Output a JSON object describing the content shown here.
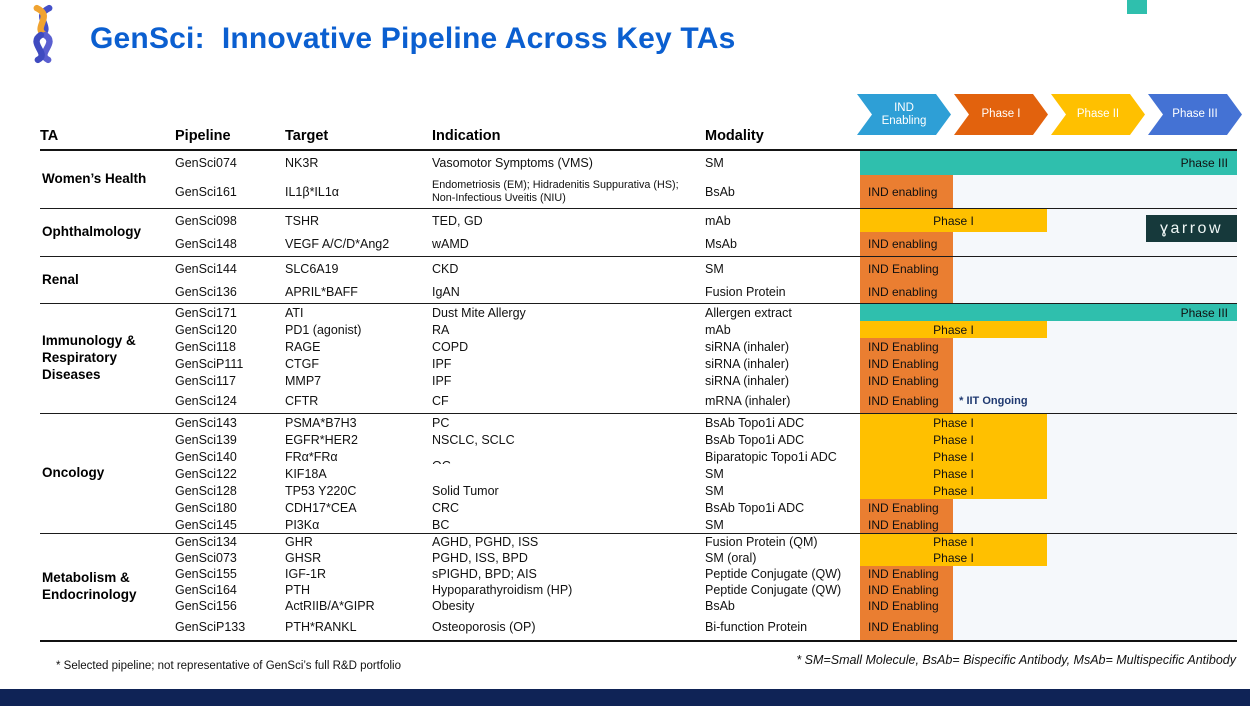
{
  "header": {
    "title": "GenSci:  Innovative Pipeline Across Key TAs",
    "logo": "dna-helix-logo"
  },
  "colors": {
    "title_blue": "#0B5FD0",
    "teal_bar": "#2FBFAD",
    "orange_bar": "#EA7E31",
    "yellow_bar": "#FFC000",
    "navy_bottom_bar": "#0F2356",
    "note_navy": "#1F3970",
    "watermark_bg": "#16393B",
    "corner_accent": "#2FBFAD"
  },
  "legend": {
    "phases": [
      {
        "label": "IND\nEnabling",
        "color": "#2E9FD6"
      },
      {
        "label": "Phase I",
        "color": "#E2620D"
      },
      {
        "label": "Phase II",
        "color": "#FFC000"
      },
      {
        "label": "Phase III",
        "color": "#4472D4"
      }
    ]
  },
  "table": {
    "columns": [
      "TA",
      "Pipeline",
      "Target",
      "Indication",
      "Modality"
    ],
    "sections": [
      {
        "ta": "Women’s Health",
        "rows": [
          {
            "pipeline": "GenSci074",
            "target": "NK3R",
            "indication": "Vasomotor Symptoms (VMS)",
            "modality": "SM",
            "phase": "phase3",
            "bar_label": "Phase III"
          },
          {
            "pipeline": "GenSci161",
            "target": "IL1β*IL1α",
            "indication": "Endometriosis (EM); Hidradenitis Suppurativa (HS); Non-Infectious Uveitis (NIU)",
            "modality": "BsAb",
            "phase": "ind",
            "bar_label": "IND enabling"
          }
        ]
      },
      {
        "ta": "Ophthalmology",
        "rows": [
          {
            "pipeline": "GenSci098",
            "target": "TSHR",
            "indication": "TED, GD",
            "modality": "mAb",
            "phase": "phase1",
            "bar_label": "Phase I"
          },
          {
            "pipeline": "GenSci148",
            "target": "VEGF A/C/D*Ang2",
            "indication": "wAMD",
            "modality": "MsAb",
            "phase": "ind",
            "bar_label": "IND enabling"
          }
        ]
      },
      {
        "ta": "Renal",
        "rows": [
          {
            "pipeline": "GenSci144",
            "target": "SLC6A19",
            "indication": "CKD",
            "modality": "SM",
            "phase": "ind",
            "bar_label": "IND Enabling"
          },
          {
            "pipeline": "GenSci136",
            "target": "APRIL*BAFF",
            "indication": "IgAN",
            "modality": "Fusion Protein",
            "phase": "ind",
            "bar_label": "IND enabling"
          }
        ]
      },
      {
        "ta": "Immunology & Respiratory Diseases",
        "rows": [
          {
            "pipeline": "GenSci171",
            "target": "ATI",
            "indication": "Dust Mite Allergy",
            "modality": "Allergen extract",
            "phase": "phase3",
            "bar_label": "Phase III"
          },
          {
            "pipeline": "GenSci120",
            "target": "PD1 (agonist)",
            "indication": "RA",
            "modality": "mAb",
            "phase": "phase1",
            "bar_label": "Phase I"
          },
          {
            "pipeline": "GenSci118",
            "target": "RAGE",
            "indication": "COPD",
            "modality": "siRNA (inhaler)",
            "phase": "ind",
            "bar_label": "IND Enabling"
          },
          {
            "pipeline": "GenSciP111",
            "target": "CTGF",
            "indication": "IPF",
            "modality": "siRNA (inhaler)",
            "phase": "ind",
            "bar_label": "IND Enabling"
          },
          {
            "pipeline": "GenSci117",
            "target": "MMP7",
            "indication": "IPF",
            "modality": "siRNA (inhaler)",
            "phase": "ind",
            "bar_label": "IND Enabling"
          },
          {
            "pipeline": "GenSci124",
            "target": "CFTR",
            "indication": "CF",
            "modality": "mRNA (inhaler)",
            "phase": "ind",
            "bar_label": "IND Enabling",
            "note": "* IIT Ongoing"
          }
        ]
      },
      {
        "ta": "Oncology",
        "rows": [
          {
            "pipeline": "GenSci143",
            "target": "PSMA*B7H3",
            "indication": "PC",
            "modality": "BsAb Topo1i ADC",
            "phase": "phase1",
            "bar_label": "Phase I"
          },
          {
            "pipeline": "GenSci139",
            "target": "EGFR*HER2",
            "indication": "NSCLC, SCLC",
            "modality": "BsAb Topo1i ADC",
            "phase": "phase1",
            "bar_label": "Phase I"
          },
          {
            "pipeline": "GenSci140",
            "target": "FRα*FRα",
            "indication": "OC",
            "indication_shift": true,
            "modality": "Biparatopic Topo1i ADC",
            "phase": "phase1",
            "bar_label": "Phase I"
          },
          {
            "pipeline": "GenSci122",
            "target": "KIF18A",
            "indication": "",
            "modality": "SM",
            "phase": "phase1",
            "bar_label": "Phase I"
          },
          {
            "pipeline": "GenSci128",
            "target": "TP53 Y220C",
            "indication": "Solid Tumor",
            "modality": "SM",
            "phase": "phase1",
            "bar_label": "Phase I"
          },
          {
            "pipeline": "GenSci180",
            "target": "CDH17*CEA",
            "indication": "CRC",
            "modality": "BsAb Topo1i ADC",
            "phase": "ind",
            "bar_label": "IND Enabling"
          },
          {
            "pipeline": "GenSci145",
            "target": "PI3Kα",
            "indication": "BC",
            "modality": "SM",
            "phase": "ind",
            "bar_label": "IND Enabling"
          }
        ]
      },
      {
        "ta": "Metabolism & Endocrinology",
        "rows": [
          {
            "pipeline": "GenSci134",
            "target": "GHR",
            "indication": "AGHD, PGHD, ISS",
            "modality": "Fusion Protein (QM)",
            "phase": "phase1",
            "bar_label": "Phase I"
          },
          {
            "pipeline": "GenSci073",
            "target": "GHSR",
            "indication": "PGHD, ISS, BPD",
            "modality": "SM (oral)",
            "phase": "phase1",
            "bar_label": "Phase I"
          },
          {
            "pipeline": "GenSci155",
            "target": "IGF-1R",
            "indication": "sPIGHD, BPD; AIS",
            "modality": "Peptide Conjugate (QW)",
            "phase": "ind",
            "bar_label": "IND Enabling"
          },
          {
            "pipeline": "GenSci164",
            "target": "PTH",
            "indication": "Hypoparathyroidism (HP)",
            "modality": "Peptide Conjugate (QW)",
            "phase": "ind",
            "bar_label": "IND Enabling"
          },
          {
            "pipeline": "GenSci156",
            "target": "ActRIIB/A*GIPR",
            "indication": "Obesity",
            "modality": "BsAb",
            "phase": "ind",
            "bar_label": "IND Enabling"
          },
          {
            "pipeline": "GenSciP133",
            "target": "PTH*RANKL",
            "indication": "Osteoporosis (OP)",
            "modality": "Bi-function Protein",
            "phase": "ind",
            "bar_label": "IND Enabling"
          }
        ]
      }
    ]
  },
  "watermark": {
    "label": "ɣarrow"
  },
  "footnotes": {
    "left": "* Selected pipeline; not representative of GenSci’s full R&D portfolio",
    "right": "* SM=Small Molecule, BsAb= Bispecific Antibody,  MsAb= Multispecific Antibody"
  }
}
